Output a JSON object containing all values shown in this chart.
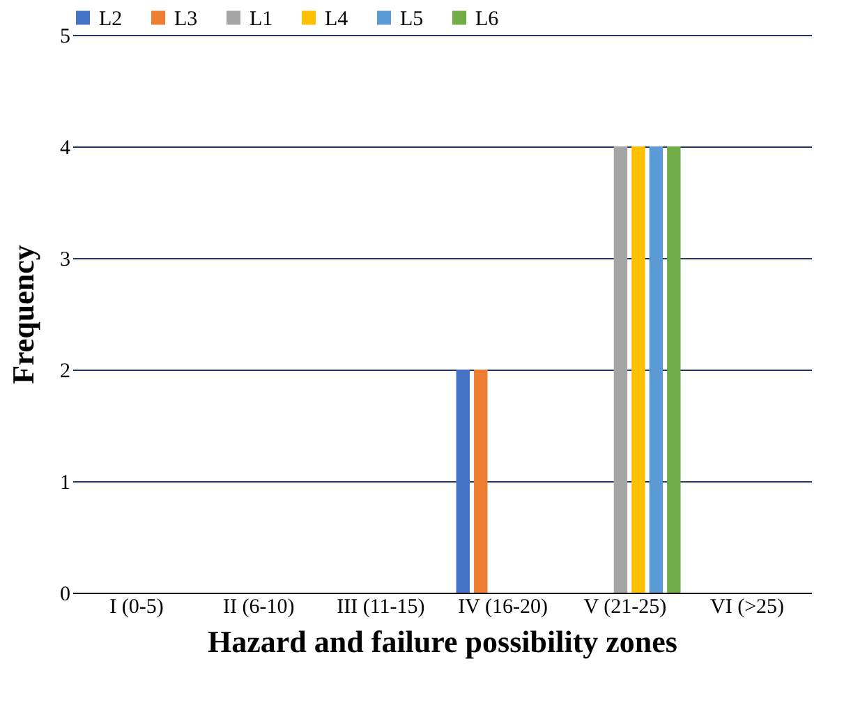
{
  "chart_data": {
    "type": "bar",
    "xlabel": "Hazard and failure possibility zones",
    "ylabel": "Frequency",
    "categories": [
      "I (0-5)",
      "II (6-10)",
      "III (11-15)",
      "IV (16-20)",
      "V (21-25)",
      "VI (>25)"
    ],
    "series": [
      {
        "name": "L2",
        "color": "#4472c4",
        "values": [
          0,
          0,
          0,
          2,
          0,
          0
        ]
      },
      {
        "name": "L3",
        "color": "#ed7d31",
        "values": [
          0,
          0,
          0,
          2,
          0,
          0
        ]
      },
      {
        "name": "L1",
        "color": "#a5a5a5",
        "values": [
          0,
          0,
          0,
          0,
          4,
          0
        ]
      },
      {
        "name": "L4",
        "color": "#ffc000",
        "values": [
          0,
          0,
          0,
          0,
          4,
          0
        ]
      },
      {
        "name": "L5",
        "color": "#5b9bd5",
        "values": [
          0,
          0,
          0,
          0,
          4,
          0
        ]
      },
      {
        "name": "L6",
        "color": "#70ad47",
        "values": [
          0,
          0,
          0,
          0,
          4,
          0
        ]
      }
    ],
    "ylim": [
      0,
      5
    ],
    "yticks": [
      0,
      1,
      2,
      3,
      4,
      5
    ],
    "grid": "y",
    "legend": "top"
  }
}
